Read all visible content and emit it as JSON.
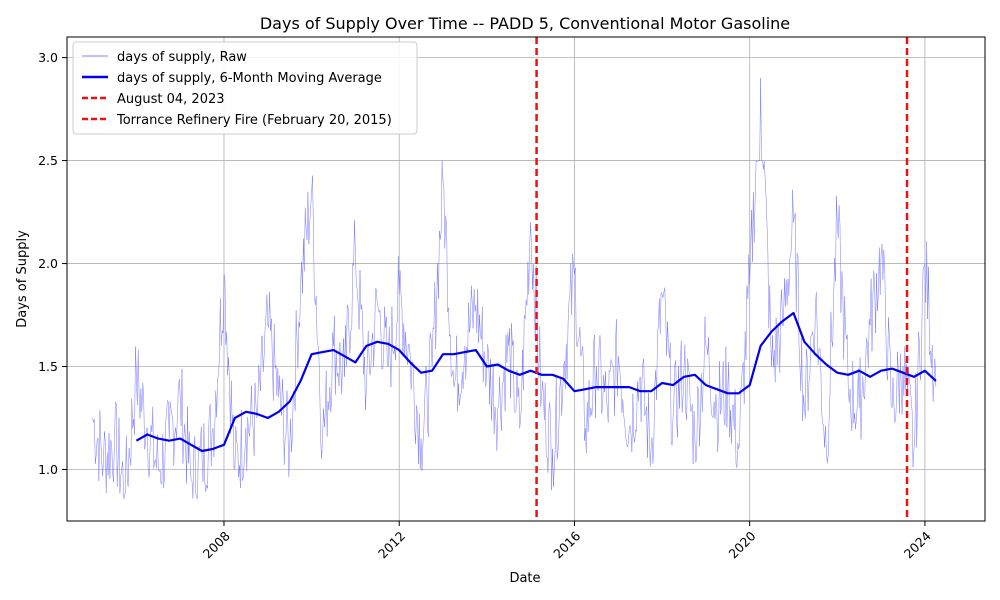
{
  "chart_data": {
    "type": "line",
    "title": "Days of Supply Over Time -- PADD 5, Conventional Motor Gasoline",
    "xlabel": "Date",
    "ylabel": "Days of Supply",
    "xlim": [
      "2004-06-01",
      "2025-05-15"
    ],
    "ylim": [
      0.75,
      3.1
    ],
    "x_ticks": [
      "2008",
      "2012",
      "2016",
      "2020",
      "2024"
    ],
    "y_ticks": [
      "1.0",
      "1.5",
      "2.0",
      "2.5",
      "3.0"
    ],
    "grid": true,
    "legend_position": "top-left",
    "colors": {
      "raw": "#6a6aff",
      "moving_average": "#0000ee",
      "events": "#ee1111",
      "grid": "#b0b0b0"
    },
    "series": [
      {
        "name": "days of supply, Raw",
        "style": "thin",
        "x": [
          "2005-01",
          "2005-04",
          "2005-07",
          "2005-10",
          "2006-01",
          "2006-04",
          "2006-07",
          "2006-10",
          "2007-01",
          "2007-04",
          "2007-07",
          "2007-10",
          "2008-01",
          "2008-04",
          "2008-07",
          "2008-10",
          "2009-01",
          "2009-04",
          "2009-07",
          "2009-10",
          "2010-01",
          "2010-04",
          "2010-07",
          "2010-10",
          "2011-01",
          "2011-04",
          "2011-07",
          "2011-10",
          "2012-01",
          "2012-04",
          "2012-07",
          "2012-10",
          "2013-01",
          "2013-04",
          "2013-07",
          "2013-10",
          "2014-01",
          "2014-04",
          "2014-07",
          "2014-10",
          "2015-01",
          "2015-04",
          "2015-07",
          "2015-10",
          "2016-01",
          "2016-04",
          "2016-07",
          "2016-10",
          "2017-01",
          "2017-04",
          "2017-07",
          "2017-10",
          "2018-01",
          "2018-04",
          "2018-07",
          "2018-10",
          "2019-01",
          "2019-04",
          "2019-07",
          "2019-10",
          "2020-01",
          "2020-04",
          "2020-07",
          "2020-10",
          "2021-01",
          "2021-04",
          "2021-07",
          "2021-10",
          "2022-01",
          "2022-04",
          "2022-07",
          "2022-10",
          "2023-01",
          "2023-04",
          "2023-07",
          "2023-10",
          "2024-01",
          "2024-04"
        ],
        "values": [
          1.25,
          1.05,
          1.15,
          0.9,
          1.45,
          1.2,
          1.0,
          1.15,
          1.35,
          0.95,
          1.05,
          1.2,
          1.95,
          1.0,
          1.2,
          1.25,
          1.7,
          1.35,
          1.1,
          1.9,
          2.35,
          1.15,
          1.6,
          1.45,
          2.05,
          1.4,
          1.8,
          1.5,
          1.85,
          1.55,
          1.15,
          1.5,
          2.4,
          1.4,
          1.6,
          1.8,
          1.5,
          1.3,
          1.6,
          1.2,
          2.2,
          1.35,
          1.1,
          1.5,
          1.95,
          1.2,
          1.5,
          1.3,
          1.55,
          1.2,
          1.45,
          1.1,
          1.85,
          1.25,
          1.5,
          1.15,
          1.6,
          1.3,
          1.4,
          1.1,
          1.9,
          2.9,
          1.5,
          1.7,
          2.2,
          1.3,
          1.8,
          1.1,
          2.2,
          1.4,
          1.3,
          1.7,
          2.05,
          1.3,
          1.5,
          1.1,
          2.0,
          1.4
        ]
      },
      {
        "name": "days of supply, 6-Month Moving Average",
        "style": "thick",
        "x": [
          "2006-01",
          "2006-04",
          "2006-07",
          "2006-10",
          "2007-01",
          "2007-04",
          "2007-07",
          "2007-10",
          "2008-01",
          "2008-04",
          "2008-07",
          "2008-10",
          "2009-01",
          "2009-04",
          "2009-07",
          "2009-10",
          "2010-01",
          "2010-04",
          "2010-07",
          "2010-10",
          "2011-01",
          "2011-04",
          "2011-07",
          "2011-10",
          "2012-01",
          "2012-04",
          "2012-07",
          "2012-10",
          "2013-01",
          "2013-04",
          "2013-07",
          "2013-10",
          "2014-01",
          "2014-04",
          "2014-07",
          "2014-10",
          "2015-01",
          "2015-04",
          "2015-07",
          "2015-10",
          "2016-01",
          "2016-04",
          "2016-07",
          "2016-10",
          "2017-01",
          "2017-04",
          "2017-07",
          "2017-10",
          "2018-01",
          "2018-04",
          "2018-07",
          "2018-10",
          "2019-01",
          "2019-04",
          "2019-07",
          "2019-10",
          "2020-01",
          "2020-04",
          "2020-07",
          "2020-10",
          "2021-01",
          "2021-04",
          "2021-07",
          "2021-10",
          "2022-01",
          "2022-04",
          "2022-07",
          "2022-10",
          "2023-01",
          "2023-04",
          "2023-07",
          "2023-10",
          "2024-01",
          "2024-04"
        ],
        "values": [
          1.14,
          1.17,
          1.15,
          1.14,
          1.15,
          1.12,
          1.09,
          1.1,
          1.12,
          1.25,
          1.28,
          1.27,
          1.25,
          1.28,
          1.33,
          1.43,
          1.56,
          1.57,
          1.58,
          1.55,
          1.52,
          1.6,
          1.62,
          1.61,
          1.58,
          1.52,
          1.47,
          1.48,
          1.56,
          1.56,
          1.57,
          1.58,
          1.5,
          1.51,
          1.48,
          1.46,
          1.48,
          1.46,
          1.46,
          1.44,
          1.38,
          1.39,
          1.4,
          1.4,
          1.4,
          1.4,
          1.38,
          1.38,
          1.42,
          1.41,
          1.45,
          1.46,
          1.41,
          1.39,
          1.37,
          1.37,
          1.41,
          1.6,
          1.67,
          1.72,
          1.76,
          1.62,
          1.56,
          1.51,
          1.47,
          1.46,
          1.48,
          1.45,
          1.48,
          1.49,
          1.47,
          1.45,
          1.48,
          1.43
        ]
      }
    ],
    "events": [
      {
        "name": "August 04, 2023",
        "date": "2023-08-04"
      },
      {
        "name": "Torrance Refinery Fire (February 20, 2015)",
        "date": "2015-02-20"
      }
    ]
  }
}
